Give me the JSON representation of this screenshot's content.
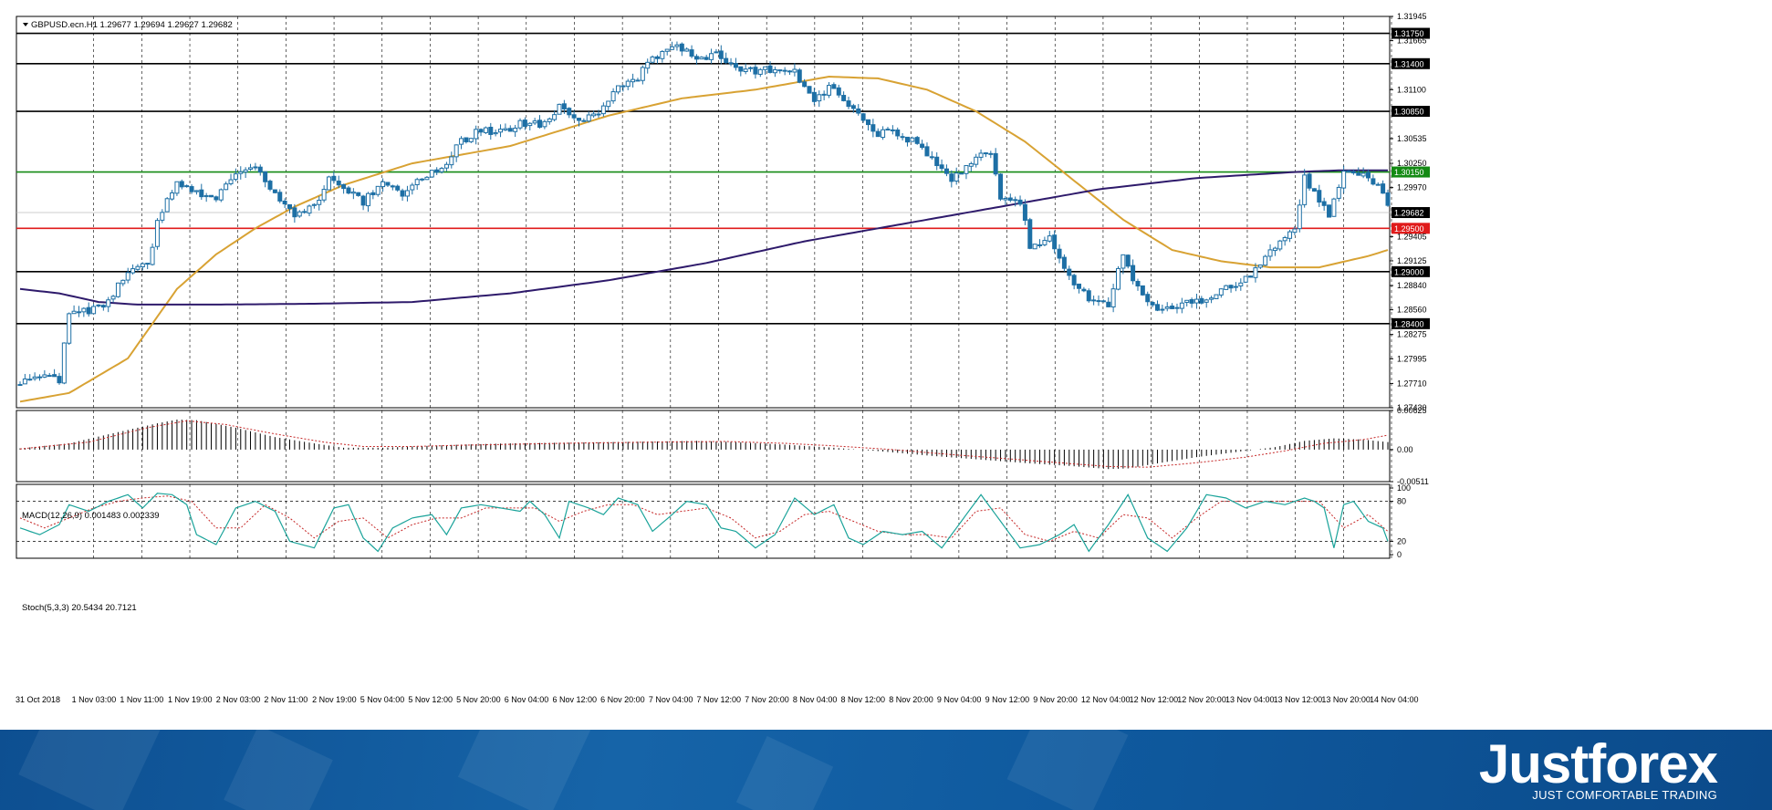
{
  "symbol_header": "GBPUSD.ecn.H1  1.29677 1.29694 1.29627 1.29682",
  "macd_header": "MACD(12,26,9) 0.001483 0.002339",
  "stoch_header": "Stoch(5,3,3) 20.5434 20.7121",
  "brand": {
    "name": "Justforex",
    "tagline": "JUST COMFORTABLE TRADING"
  },
  "colors": {
    "candle": "#1d6fa5",
    "ma_slow": "#2e1a6b",
    "ma_fast": "#d8a233",
    "level_black": "#000000",
    "level_green": "#138a13",
    "level_red": "#e01b1b",
    "macd_signal": "#c62828",
    "stoch_main": "#1aa39a",
    "stoch_signal": "#c62828",
    "current_price": "#000000"
  },
  "chart_data": [
    {
      "type": "candlestick",
      "title": "GBPUSD.ecn.H1",
      "ylim": [
        1.2743,
        1.31945
      ],
      "price_ticks": [
        "1.31945",
        "1.31665",
        "1.31100",
        "1.30535",
        "1.30250",
        "1.29970",
        "1.29405",
        "1.29125",
        "1.28840",
        "1.28560",
        "1.28275",
        "1.27995",
        "1.27710",
        "1.27430"
      ],
      "x_labels": [
        "31 Oct 2018",
        "1 Nov 03:00",
        "1 Nov 11:00",
        "1 Nov 19:00",
        "2 Nov 03:00",
        "2 Nov 11:00",
        "2 Nov 19:00",
        "5 Nov 04:00",
        "5 Nov 12:00",
        "5 Nov 20:00",
        "6 Nov 04:00",
        "6 Nov 12:00",
        "6 Nov 20:00",
        "7 Nov 04:00",
        "7 Nov 12:00",
        "7 Nov 20:00",
        "8 Nov 04:00",
        "8 Nov 12:00",
        "8 Nov 20:00",
        "9 Nov 04:00",
        "9 Nov 12:00",
        "9 Nov 20:00",
        "12 Nov 04:00",
        "12 Nov 12:00",
        "12 Nov 20:00",
        "13 Nov 04:00",
        "13 Nov 12:00",
        "13 Nov 20:00",
        "14 Nov 04:00"
      ],
      "levels": [
        {
          "price": 1.3175,
          "label": "1.31750",
          "color": "black"
        },
        {
          "price": 1.314,
          "label": "1.31400",
          "color": "black"
        },
        {
          "price": 1.3085,
          "label": "1.30850",
          "color": "black"
        },
        {
          "price": 1.3015,
          "label": "1.30150",
          "color": "green"
        },
        {
          "price": 1.295,
          "label": "1.29500",
          "color": "red"
        },
        {
          "price": 1.29,
          "label": "1.29000",
          "color": "black"
        },
        {
          "price": 1.284,
          "label": "1.28400",
          "color": "black"
        }
      ],
      "current_price": {
        "price": 1.29682,
        "label": "1.29682"
      },
      "anchors": [
        [
          0,
          1.277
        ],
        [
          4,
          1.278
        ],
        [
          8,
          1.2775
        ],
        [
          10,
          1.2852
        ],
        [
          14,
          1.2855
        ],
        [
          18,
          1.2865
        ],
        [
          22,
          1.29
        ],
        [
          26,
          1.291
        ],
        [
          28,
          1.2955
        ],
        [
          30,
          1.2985
        ],
        [
          32,
          1.3005
        ],
        [
          35,
          1.2995
        ],
        [
          40,
          1.2985
        ],
        [
          44,
          1.301
        ],
        [
          48,
          1.302
        ],
        [
          52,
          1.299
        ],
        [
          56,
          1.2965
        ],
        [
          60,
          1.2975
        ],
        [
          63,
          1.301
        ],
        [
          66,
          1.2995
        ],
        [
          70,
          1.298
        ],
        [
          74,
          1.3005
        ],
        [
          78,
          1.2985
        ],
        [
          82,
          1.301
        ],
        [
          86,
          1.302
        ],
        [
          90,
          1.305
        ],
        [
          94,
          1.3065
        ],
        [
          98,
          1.306
        ],
        [
          102,
          1.307
        ],
        [
          106,
          1.307
        ],
        [
          110,
          1.309
        ],
        [
          114,
          1.3075
        ],
        [
          118,
          1.308
        ],
        [
          122,
          1.3115
        ],
        [
          126,
          1.3125
        ],
        [
          130,
          1.315
        ],
        [
          134,
          1.316
        ],
        [
          138,
          1.3145
        ],
        [
          142,
          1.315
        ],
        [
          146,
          1.3135
        ],
        [
          150,
          1.313
        ],
        [
          154,
          1.3135
        ],
        [
          158,
          1.313
        ],
        [
          162,
          1.31
        ],
        [
          166,
          1.3115
        ],
        [
          170,
          1.3085
        ],
        [
          174,
          1.306
        ],
        [
          178,
          1.306
        ],
        [
          182,
          1.305
        ],
        [
          186,
          1.303
        ],
        [
          190,
          1.3005
        ],
        [
          194,
          1.3025
        ],
        [
          198,
          1.304
        ],
        [
          200,
          1.2985
        ],
        [
          204,
          1.298
        ],
        [
          206,
          1.293
        ],
        [
          210,
          1.294
        ],
        [
          214,
          1.2895
        ],
        [
          218,
          1.287
        ],
        [
          222,
          1.286
        ],
        [
          225,
          1.292
        ],
        [
          228,
          1.288
        ],
        [
          232,
          1.2855
        ],
        [
          236,
          1.286
        ],
        [
          240,
          1.2865
        ],
        [
          244,
          1.2875
        ],
        [
          248,
          1.2885
        ],
        [
          252,
          1.29
        ],
        [
          256,
          1.293
        ],
        [
          260,
          1.295
        ],
        [
          262,
          1.301
        ],
        [
          264,
          1.299
        ],
        [
          267,
          1.2965
        ],
        [
          270,
          1.302
        ],
        [
          274,
          1.301
        ],
        [
          277,
          1.3
        ],
        [
          279,
          1.2975
        ]
      ],
      "ma_fast": [
        [
          0,
          1.275
        ],
        [
          10,
          1.276
        ],
        [
          22,
          1.28
        ],
        [
          32,
          1.288
        ],
        [
          40,
          1.292
        ],
        [
          48,
          1.295
        ],
        [
          56,
          1.2975
        ],
        [
          66,
          1.3
        ],
        [
          80,
          1.3025
        ],
        [
          100,
          1.3045
        ],
        [
          120,
          1.308
        ],
        [
          135,
          1.31
        ],
        [
          150,
          1.311
        ],
        [
          165,
          1.3125
        ],
        [
          175,
          1.3123
        ],
        [
          185,
          1.311
        ],
        [
          195,
          1.3085
        ],
        [
          205,
          1.305
        ],
        [
          215,
          1.3005
        ],
        [
          225,
          1.296
        ],
        [
          235,
          1.2925
        ],
        [
          245,
          1.2912
        ],
        [
          255,
          1.2905
        ],
        [
          265,
          1.2905
        ],
        [
          275,
          1.2918
        ],
        [
          279,
          1.2925
        ]
      ],
      "ma_slow": [
        [
          0,
          1.288
        ],
        [
          8,
          1.2875
        ],
        [
          16,
          1.2865
        ],
        [
          24,
          1.2862
        ],
        [
          40,
          1.2862
        ],
        [
          60,
          1.2863
        ],
        [
          80,
          1.2865
        ],
        [
          100,
          1.2875
        ],
        [
          120,
          1.289
        ],
        [
          140,
          1.291
        ],
        [
          160,
          1.2935
        ],
        [
          180,
          1.2955
        ],
        [
          200,
          1.2975
        ],
        [
          220,
          1.2995
        ],
        [
          240,
          1.3008
        ],
        [
          260,
          1.3015
        ],
        [
          270,
          1.3017
        ],
        [
          279,
          1.3017
        ]
      ]
    },
    {
      "type": "bar",
      "title": "MACD(12,26,9)",
      "ylim": [
        -0.00511,
        0.00625
      ],
      "tick_labels": [
        "0.00625",
        "0.00",
        "-0.00511"
      ],
      "anchors": [
        [
          0,
          0.0002
        ],
        [
          10,
          0.001
        ],
        [
          20,
          0.0028
        ],
        [
          28,
          0.0042
        ],
        [
          32,
          0.0048
        ],
        [
          36,
          0.0047
        ],
        [
          44,
          0.0035
        ],
        [
          52,
          0.002
        ],
        [
          60,
          0.001
        ],
        [
          66,
          0.0003
        ],
        [
          74,
          0.0003
        ],
        [
          80,
          0.0005
        ],
        [
          90,
          0.0008
        ],
        [
          100,
          0.001
        ],
        [
          110,
          0.0011
        ],
        [
          120,
          0.0012
        ],
        [
          130,
          0.0013
        ],
        [
          138,
          0.0014
        ],
        [
          146,
          0.0012
        ],
        [
          156,
          0.0008
        ],
        [
          166,
          0.0003
        ],
        [
          176,
          -0.0003
        ],
        [
          186,
          -0.001
        ],
        [
          196,
          -0.0016
        ],
        [
          206,
          -0.0022
        ],
        [
          214,
          -0.0026
        ],
        [
          222,
          -0.0031
        ],
        [
          226,
          -0.003
        ],
        [
          232,
          -0.0022
        ],
        [
          240,
          -0.0012
        ],
        [
          248,
          -0.0004
        ],
        [
          256,
          0.0004
        ],
        [
          262,
          0.0014
        ],
        [
          268,
          0.0018
        ],
        [
          274,
          0.0016
        ],
        [
          279,
          0.0012
        ]
      ],
      "signal_anchors": [
        [
          0,
          0.0001
        ],
        [
          14,
          0.0012
        ],
        [
          26,
          0.0035
        ],
        [
          34,
          0.0046
        ],
        [
          42,
          0.004
        ],
        [
          52,
          0.0025
        ],
        [
          62,
          0.0012
        ],
        [
          70,
          0.0005
        ],
        [
          80,
          0.0005
        ],
        [
          90,
          0.0007
        ],
        [
          110,
          0.001
        ],
        [
          130,
          0.0012
        ],
        [
          144,
          0.0013
        ],
        [
          156,
          0.001
        ],
        [
          166,
          0.0006
        ],
        [
          178,
          0.0
        ],
        [
          190,
          -0.0008
        ],
        [
          202,
          -0.0015
        ],
        [
          212,
          -0.0021
        ],
        [
          222,
          -0.0027
        ],
        [
          230,
          -0.0028
        ],
        [
          240,
          -0.0021
        ],
        [
          250,
          -0.0012
        ],
        [
          258,
          -0.0002
        ],
        [
          266,
          0.001
        ],
        [
          274,
          0.0016
        ],
        [
          279,
          0.0023
        ]
      ]
    },
    {
      "type": "line",
      "title": "Stoch(5,3,3)",
      "ylim": [
        0,
        100
      ],
      "tick_labels": [
        "100",
        "80",
        "20",
        "0"
      ],
      "levels": [
        80,
        20
      ],
      "main": [
        [
          0,
          40
        ],
        [
          4,
          30
        ],
        [
          8,
          45
        ],
        [
          10,
          75
        ],
        [
          14,
          65
        ],
        [
          18,
          80
        ],
        [
          22,
          90
        ],
        [
          25,
          70
        ],
        [
          28,
          92
        ],
        [
          31,
          90
        ],
        [
          34,
          75
        ],
        [
          36,
          30
        ],
        [
          40,
          15
        ],
        [
          44,
          70
        ],
        [
          48,
          80
        ],
        [
          52,
          65
        ],
        [
          55,
          20
        ],
        [
          60,
          10
        ],
        [
          64,
          70
        ],
        [
          67,
          75
        ],
        [
          70,
          25
        ],
        [
          73,
          5
        ],
        [
          76,
          40
        ],
        [
          80,
          55
        ],
        [
          84,
          60
        ],
        [
          87,
          30
        ],
        [
          90,
          70
        ],
        [
          94,
          75
        ],
        [
          98,
          70
        ],
        [
          102,
          65
        ],
        [
          104,
          80
        ],
        [
          107,
          60
        ],
        [
          110,
          25
        ],
        [
          112,
          80
        ],
        [
          116,
          70
        ],
        [
          119,
          60
        ],
        [
          122,
          85
        ],
        [
          126,
          75
        ],
        [
          129,
          35
        ],
        [
          133,
          60
        ],
        [
          136,
          80
        ],
        [
          140,
          75
        ],
        [
          143,
          40
        ],
        [
          146,
          35
        ],
        [
          150,
          10
        ],
        [
          154,
          30
        ],
        [
          158,
          85
        ],
        [
          162,
          60
        ],
        [
          166,
          75
        ],
        [
          169,
          25
        ],
        [
          172,
          15
        ],
        [
          176,
          35
        ],
        [
          180,
          30
        ],
        [
          184,
          35
        ],
        [
          188,
          10
        ],
        [
          192,
          50
        ],
        [
          196,
          90
        ],
        [
          200,
          50
        ],
        [
          204,
          10
        ],
        [
          208,
          15
        ],
        [
          212,
          30
        ],
        [
          215,
          45
        ],
        [
          218,
          5
        ],
        [
          222,
          45
        ],
        [
          226,
          90
        ],
        [
          230,
          25
        ],
        [
          234,
          5
        ],
        [
          238,
          40
        ],
        [
          242,
          90
        ],
        [
          246,
          85
        ],
        [
          250,
          70
        ],
        [
          254,
          80
        ],
        [
          258,
          75
        ],
        [
          262,
          85
        ],
        [
          264,
          80
        ],
        [
          266,
          70
        ],
        [
          268,
          10
        ],
        [
          270,
          75
        ],
        [
          272,
          80
        ],
        [
          275,
          50
        ],
        [
          278,
          40
        ],
        [
          279,
          20
        ]
      ],
      "signal": [
        [
          0,
          55
        ],
        [
          5,
          40
        ],
        [
          10,
          55
        ],
        [
          15,
          70
        ],
        [
          20,
          80
        ],
        [
          25,
          85
        ],
        [
          30,
          88
        ],
        [
          35,
          80
        ],
        [
          40,
          40
        ],
        [
          45,
          40
        ],
        [
          50,
          75
        ],
        [
          55,
          55
        ],
        [
          60,
          25
        ],
        [
          65,
          50
        ],
        [
          70,
          55
        ],
        [
          75,
          25
        ],
        [
          80,
          45
        ],
        [
          85,
          55
        ],
        [
          90,
          55
        ],
        [
          95,
          70
        ],
        [
          100,
          70
        ],
        [
          105,
          70
        ],
        [
          110,
          50
        ],
        [
          115,
          65
        ],
        [
          120,
          75
        ],
        [
          125,
          75
        ],
        [
          130,
          60
        ],
        [
          135,
          65
        ],
        [
          140,
          70
        ],
        [
          145,
          55
        ],
        [
          150,
          25
        ],
        [
          155,
          35
        ],
        [
          160,
          60
        ],
        [
          165,
          65
        ],
        [
          170,
          50
        ],
        [
          175,
          35
        ],
        [
          180,
          30
        ],
        [
          185,
          30
        ],
        [
          190,
          25
        ],
        [
          195,
          65
        ],
        [
          200,
          70
        ],
        [
          205,
          30
        ],
        [
          210,
          20
        ],
        [
          215,
          35
        ],
        [
          220,
          25
        ],
        [
          225,
          60
        ],
        [
          230,
          55
        ],
        [
          235,
          25
        ],
        [
          240,
          55
        ],
        [
          245,
          80
        ],
        [
          250,
          80
        ],
        [
          255,
          80
        ],
        [
          260,
          80
        ],
        [
          265,
          80
        ],
        [
          270,
          40
        ],
        [
          275,
          60
        ],
        [
          279,
          35
        ]
      ]
    }
  ]
}
